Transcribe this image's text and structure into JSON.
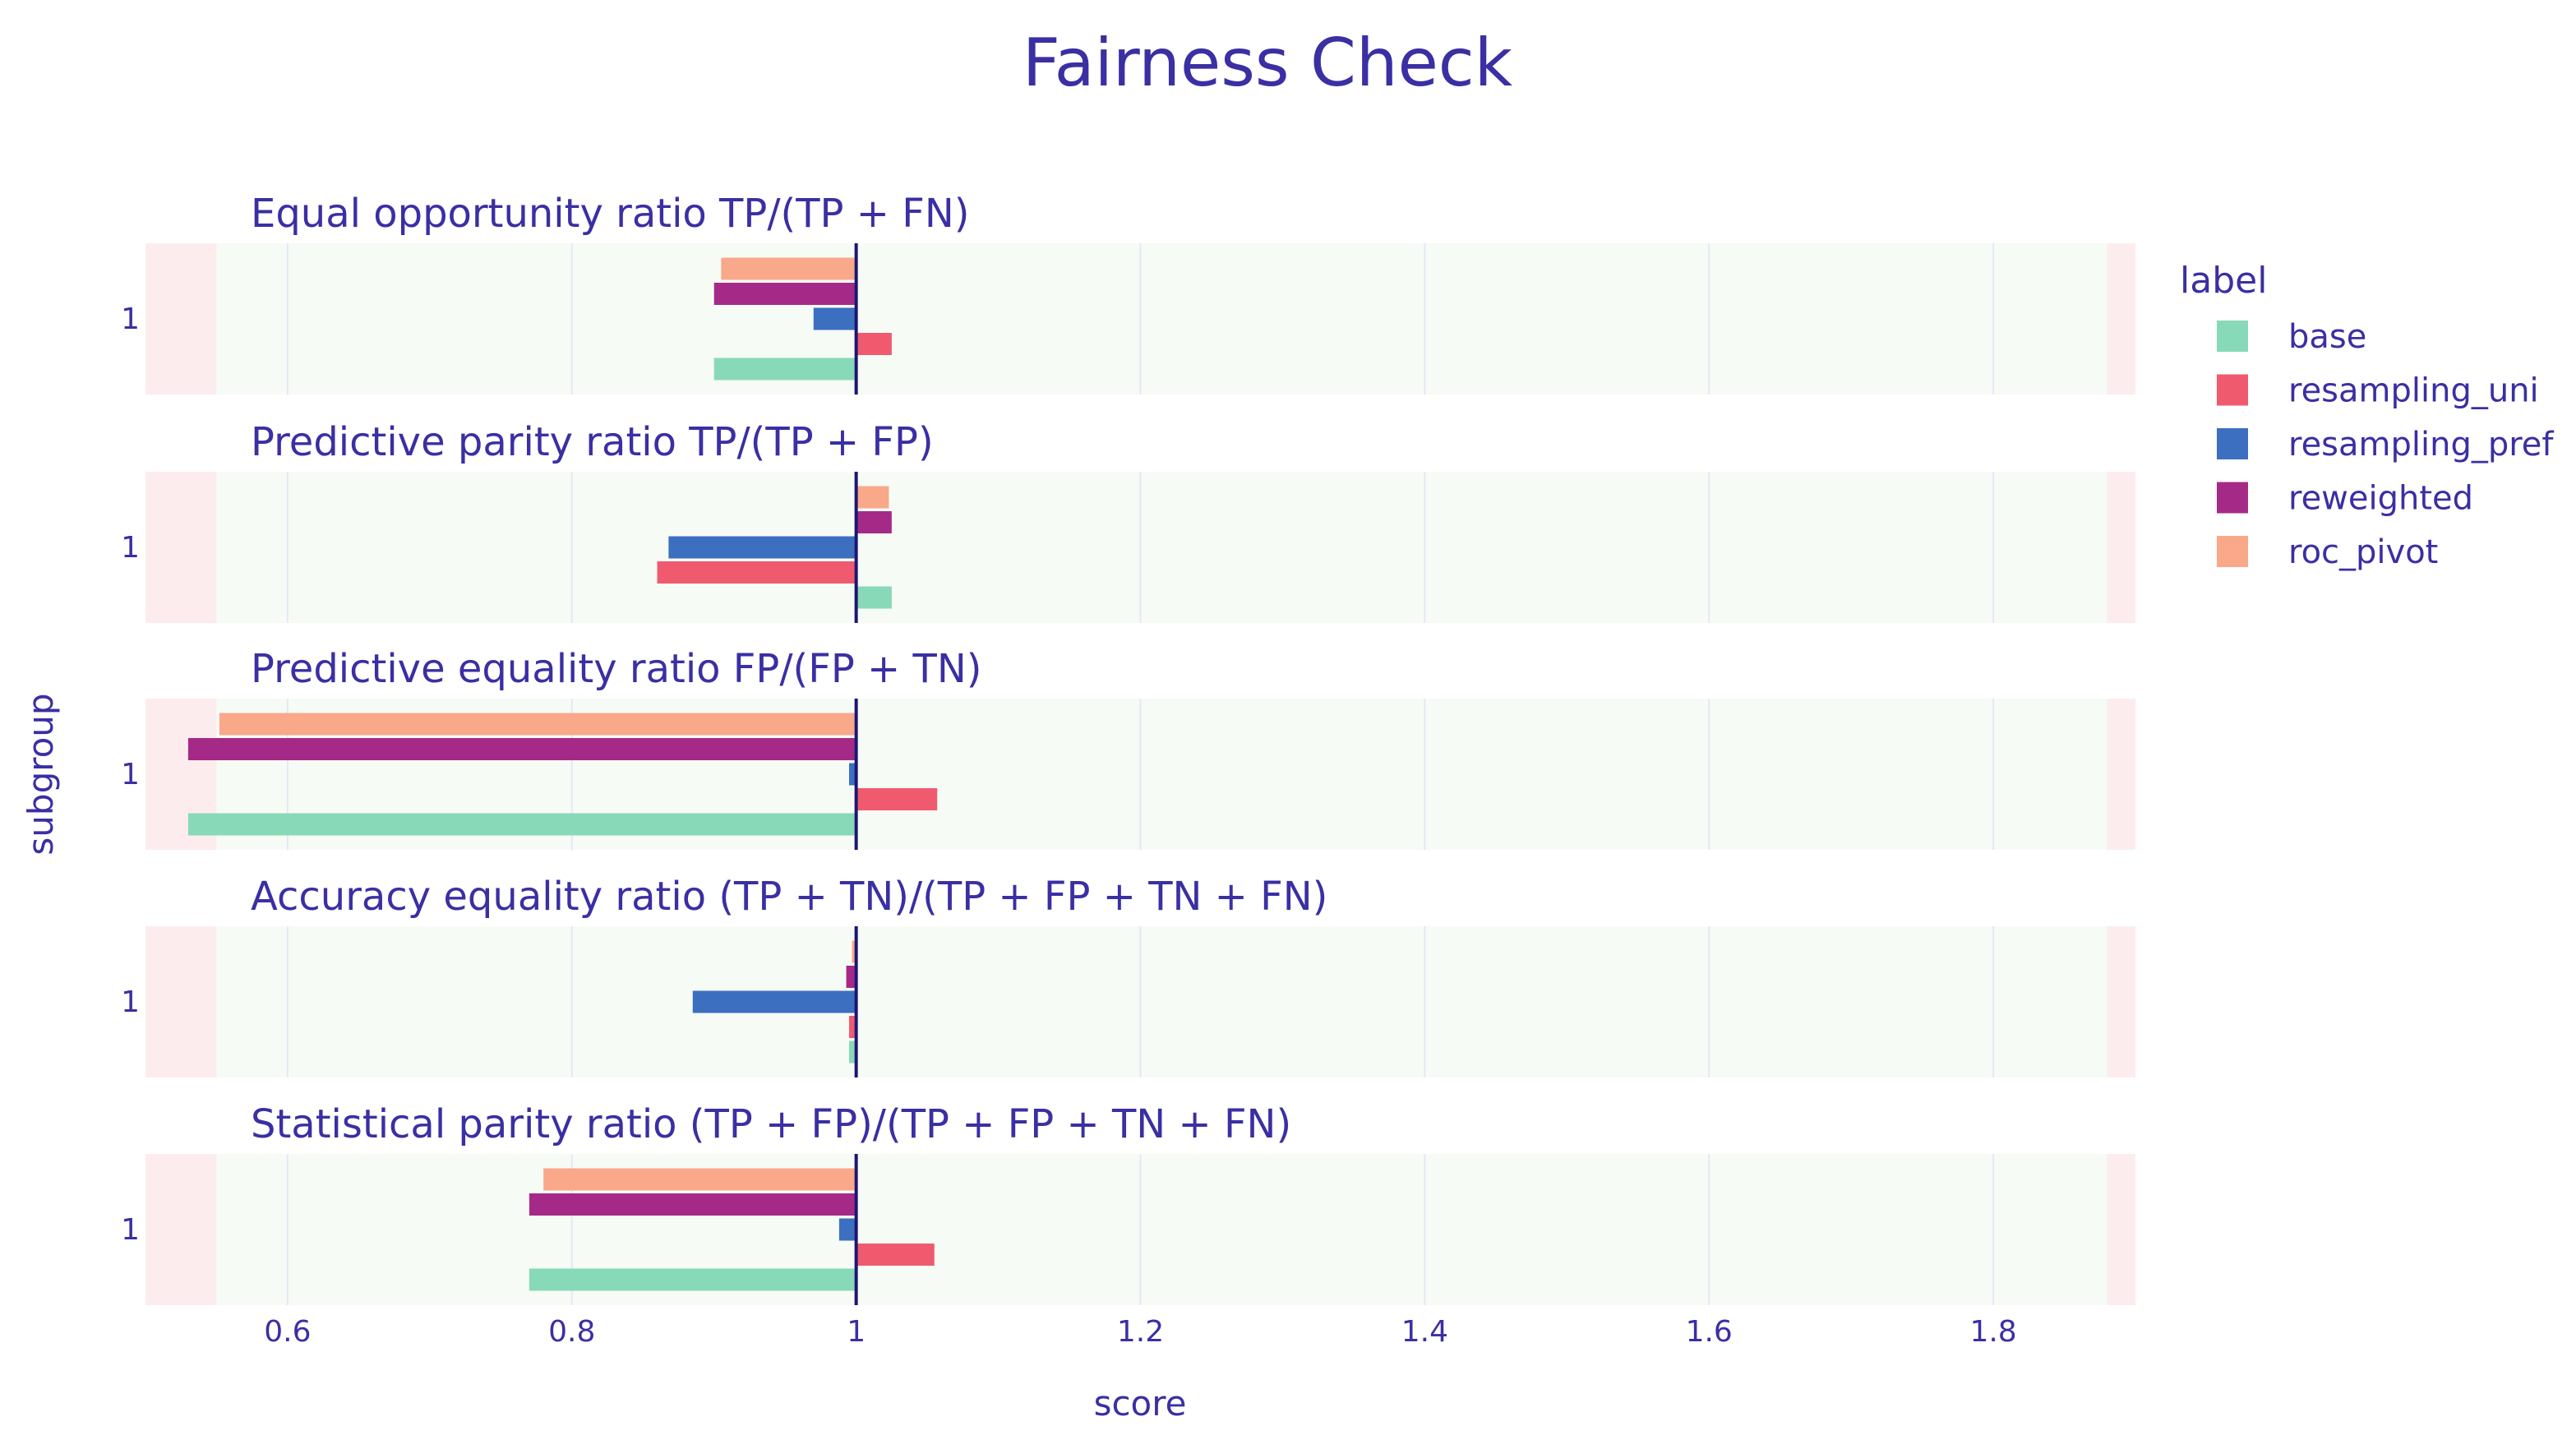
{
  "chart_data": {
    "type": "bar",
    "orientation": "horizontal",
    "title": "Fairness Check",
    "xlabel": "score",
    "ylabel": "subgroup",
    "xlim": [
      0.5,
      1.9
    ],
    "xticks": [
      0.6,
      0.8,
      1,
      1.2,
      1.4,
      1.6,
      1.8
    ],
    "xtick_labels": [
      "0.6",
      "0.8",
      "1",
      "1.2",
      "1.4",
      "1.6",
      "1.8"
    ],
    "fair_range": [
      0.55,
      1.88
    ],
    "reference_line": 1,
    "legend": {
      "title": "label",
      "placement": "right",
      "items": [
        {
          "name": "base",
          "color": "#88d9b8"
        },
        {
          "name": "resampling_uni",
          "color": "#ef5a6f"
        },
        {
          "name": "resampling_pref",
          "color": "#3d6fc0"
        },
        {
          "name": "reweighted",
          "color": "#a52a88"
        },
        {
          "name": "roc_pivot",
          "color": "#f9a88a"
        }
      ]
    },
    "panels": [
      {
        "metric": "Equal opportunity ratio",
        "formula": "TP/(TP + FN)",
        "category": "1",
        "values": {
          "base": 0.9,
          "resampling_uni": 1.025,
          "resampling_pref": 0.97,
          "reweighted": 0.9,
          "roc_pivot": 0.905
        }
      },
      {
        "metric": "Predictive parity ratio",
        "formula": "TP/(TP + FP)",
        "category": "1",
        "values": {
          "base": 1.025,
          "resampling_uni": 0.86,
          "resampling_pref": 0.868,
          "reweighted": 1.025,
          "roc_pivot": 1.023
        }
      },
      {
        "metric": "Predictive equality ratio",
        "formula": "FP/(FP + TN)",
        "category": "1",
        "values": {
          "base": 0.53,
          "resampling_uni": 1.057,
          "resampling_pref": 0.995,
          "reweighted": 0.53,
          "roc_pivot": 0.552
        }
      },
      {
        "metric": "Accuracy equality ratio",
        "formula": "(TP + TN)/(TP + FP + TN + FN)",
        "category": "1",
        "values": {
          "base": 0.995,
          "resampling_uni": 0.995,
          "resampling_pref": 0.885,
          "reweighted": 0.993,
          "roc_pivot": 0.997
        }
      },
      {
        "metric": "Statistical parity ratio",
        "formula": "(TP + FP)/(TP + FP + TN + FN)",
        "category": "1",
        "values": {
          "base": 0.77,
          "resampling_uni": 1.055,
          "resampling_pref": 0.988,
          "reweighted": 0.77,
          "roc_pivot": 0.78
        }
      }
    ],
    "colors": {
      "title": "#3a2fa3",
      "fair_zone": "#f6fbf5",
      "unfair_zone": "#fdecee",
      "reference_line": "#1c1670",
      "grid": "#e3e8f6"
    }
  }
}
